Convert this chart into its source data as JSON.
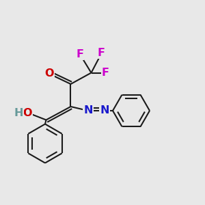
{
  "bg_color": "#e8e8e8",
  "bond_color": "#1a1a1a",
  "bond_width": 1.5,
  "dbo": 0.012,
  "colors": {
    "O": "#cc0000",
    "N": "#1a1acc",
    "F": "#cc00cc",
    "H": "#669999",
    "C": "#1a1a1a"
  },
  "fs": 11.5
}
